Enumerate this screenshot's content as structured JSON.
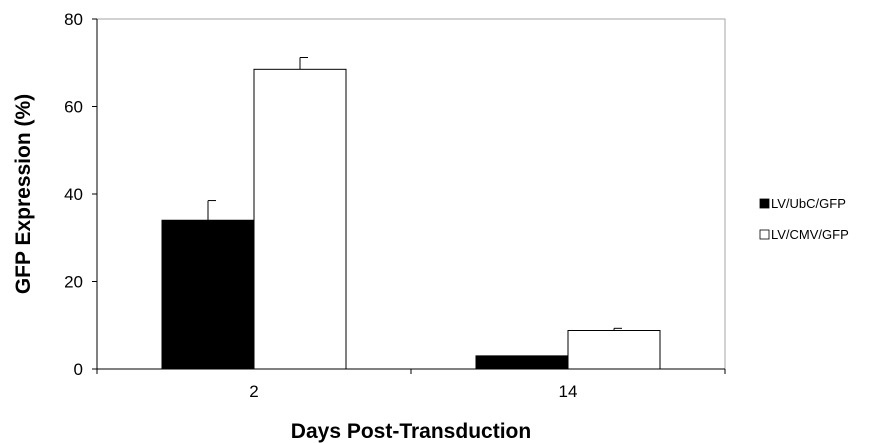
{
  "chart_data": {
    "type": "bar",
    "categories": [
      "2",
      "14"
    ],
    "series": [
      {
        "name": "LV/UbC/GFP",
        "values": [
          34,
          3
        ],
        "errors": [
          4.5,
          0
        ],
        "color": "#000000"
      },
      {
        "name": "LV/CMV/GFP",
        "values": [
          68.5,
          8.8
        ],
        "errors": [
          2.7,
          0.5
        ],
        "color": "#ffffff"
      }
    ],
    "title": "",
    "xlabel": "Days Post-Transduction",
    "ylabel": "GFP Expression (%)",
    "ylim": [
      0,
      80
    ],
    "yticks": [
      "0",
      "20",
      "40",
      "60",
      "80"
    ],
    "grid": false,
    "legend_position": "right",
    "colors": {
      "axis": "#000000",
      "plot_border": "#a6a6a6",
      "text": "#000000"
    }
  }
}
